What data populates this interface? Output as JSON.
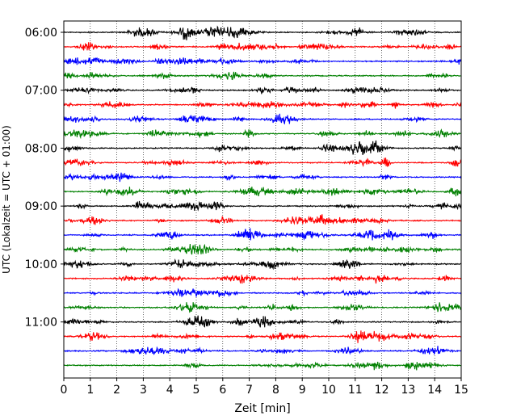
{
  "chart_data": {
    "type": "line",
    "title": "",
    "xlabel": "Zeit  [min]",
    "ylabel": "UTC (Lokalzeit = UTC + 01:00)",
    "xlim": [
      0,
      15
    ],
    "x_ticks": [
      "0",
      "1",
      "2",
      "3",
      "4",
      "5",
      "6",
      "7",
      "8",
      "9",
      "10",
      "11",
      "12",
      "13",
      "14",
      "15"
    ],
    "y_tick_labels": [
      "06:00",
      "07:00",
      "08:00",
      "09:00",
      "10:00",
      "11:00"
    ],
    "grid": "vertical dotted lines at every minute",
    "trace_interval_min": 15,
    "trace_count": 24,
    "trace_start_time": "06:00",
    "trace_colors": [
      "#000000",
      "#ff0000",
      "#0000ff",
      "#008000"
    ],
    "description": "Helicorder seismogram: 24 traces of 15 minutes each, colors cycling black, red, blue, green"
  }
}
